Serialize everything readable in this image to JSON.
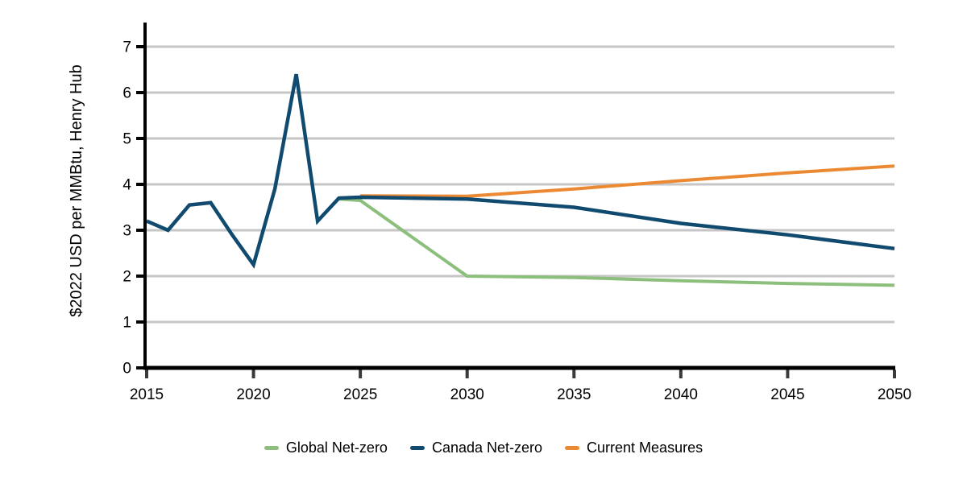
{
  "chart_data": {
    "type": "line",
    "title": "",
    "xlabel": "",
    "ylabel": "$2022 USD per MMBtu, Henry Hub",
    "xlim": [
      2015,
      2050
    ],
    "ylim": [
      0,
      7
    ],
    "x_ticks": [
      2015,
      2020,
      2025,
      2030,
      2035,
      2040,
      2045,
      2050
    ],
    "y_ticks": [
      0,
      1,
      2,
      3,
      4,
      5,
      6,
      7
    ],
    "grid": "horizontal",
    "grid_color": "#C6C6C6",
    "axis_color": "#000000",
    "x_tick_mark_color": "#3A3A3A",
    "legend_position": "bottom-center",
    "series": [
      {
        "name": "Global Net-zero",
        "color": "#8CBE7C",
        "points": [
          [
            2024,
            3.68
          ],
          [
            2025,
            3.65
          ],
          [
            2030,
            2.0
          ],
          [
            2035,
            1.97
          ],
          [
            2040,
            1.9
          ],
          [
            2045,
            1.84
          ],
          [
            2050,
            1.8
          ]
        ]
      },
      {
        "name": "Canada Net-zero",
        "color": "#104A6E",
        "points": [
          [
            2015,
            3.2
          ],
          [
            2016,
            3.0
          ],
          [
            2017,
            3.55
          ],
          [
            2018,
            3.6
          ],
          [
            2019,
            2.9
          ],
          [
            2020,
            2.25
          ],
          [
            2021,
            3.9
          ],
          [
            2022,
            6.4
          ],
          [
            2023,
            3.2
          ],
          [
            2024,
            3.7
          ],
          [
            2025,
            3.72
          ],
          [
            2030,
            3.68
          ],
          [
            2035,
            3.5
          ],
          [
            2040,
            3.15
          ],
          [
            2045,
            2.9
          ],
          [
            2050,
            2.6
          ]
        ]
      },
      {
        "name": "Current Measures",
        "color": "#EC8A33",
        "points": [
          [
            2025,
            3.75
          ],
          [
            2030,
            3.74
          ],
          [
            2035,
            3.9
          ],
          [
            2040,
            4.08
          ],
          [
            2045,
            4.25
          ],
          [
            2050,
            4.4
          ]
        ]
      }
    ]
  }
}
